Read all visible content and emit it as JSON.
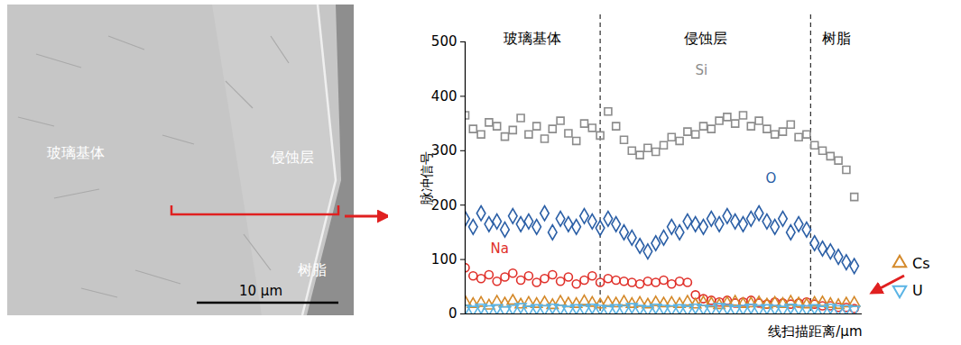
{
  "sem_image": {
    "labels": [
      "玻璃基体",
      "侵蚀层",
      "树脂"
    ],
    "scale_bar_label": "10 μm"
  },
  "chart_data": {
    "type": "scatter",
    "ylabel": "脉冲信号",
    "xlabel": "线扫描距离/μm",
    "xlim": [
      0,
      100
    ],
    "xticks": [],
    "ylim": [
      0,
      500
    ],
    "yticks": [
      0,
      100,
      200,
      300,
      400,
      500
    ],
    "tick_labels": "y",
    "legend": "right",
    "regions": [
      {
        "label": "玻璃基体",
        "start": 0,
        "end": 34
      },
      {
        "label": "侵蚀层",
        "start": 34,
        "end": 87
      },
      {
        "label": "树脂",
        "start": 87,
        "end": 100
      }
    ],
    "x": [
      0,
      2,
      4,
      6,
      8,
      10,
      12,
      14,
      16,
      18,
      20,
      22,
      24,
      26,
      28,
      30,
      32,
      34,
      36,
      38,
      40,
      42,
      44,
      46,
      48,
      50,
      52,
      54,
      56,
      58,
      60,
      62,
      64,
      66,
      68,
      70,
      72,
      74,
      76,
      78,
      80,
      82,
      84,
      86,
      88,
      90,
      92,
      94,
      96,
      98
    ],
    "series": [
      {
        "name": "Si",
        "color": "#8c8c8c",
        "marker": "square",
        "values": [
          365,
          340,
          330,
          352,
          345,
          326,
          338,
          360,
          330,
          345,
          322,
          340,
          355,
          332,
          318,
          350,
          342,
          328,
          372,
          345,
          320,
          300,
          292,
          305,
          298,
          310,
          325,
          318,
          335,
          330,
          345,
          340,
          355,
          362,
          350,
          365,
          345,
          355,
          340,
          330,
          335,
          348,
          325,
          330,
          310,
          300,
          290,
          282,
          265,
          215
        ]
      },
      {
        "name": "O",
        "color": "#2b5fa6",
        "marker": "diamond",
        "values": [
          175,
          160,
          185,
          165,
          170,
          155,
          180,
          165,
          170,
          160,
          185,
          150,
          175,
          165,
          160,
          180,
          170,
          158,
          175,
          165,
          150,
          140,
          125,
          115,
          130,
          140,
          160,
          150,
          170,
          165,
          160,
          175,
          165,
          180,
          170,
          165,
          175,
          185,
          170,
          160,
          175,
          150,
          165,
          155,
          130,
          120,
          115,
          105,
          95,
          88
        ]
      },
      {
        "name": "Na",
        "color": "#e0302a",
        "marker": "circle",
        "values": [
          85,
          70,
          65,
          72,
          60,
          68,
          75,
          62,
          70,
          58,
          65,
          72,
          60,
          68,
          55,
          62,
          70,
          58,
          65,
          62,
          60,
          58,
          55,
          60,
          58,
          62,
          55,
          60,
          58,
          35,
          28,
          25,
          22,
          25,
          20,
          22,
          25,
          20,
          18,
          22,
          20,
          18,
          20,
          22,
          18,
          15,
          15,
          12,
          12,
          10
        ]
      },
      {
        "name": "Cs",
        "color": "#d4892a",
        "marker": "triangle",
        "values": [
          22,
          18,
          20,
          15,
          22,
          19,
          24,
          17,
          20,
          18,
          21,
          16,
          22,
          19,
          18,
          23,
          20,
          17,
          21,
          19,
          22,
          18,
          20,
          17,
          21,
          19,
          20,
          18,
          22,
          17,
          21,
          19,
          16,
          20,
          22,
          18,
          19,
          21,
          17,
          20,
          18,
          22,
          19,
          17,
          20,
          21,
          18,
          16,
          19,
          20
        ]
      },
      {
        "name": "U",
        "color": "#5ab4e5",
        "marker": "triangle-down",
        "values": [
          10,
          8,
          12,
          9,
          11,
          7,
          10,
          13,
          8,
          11,
          9,
          12,
          10,
          8,
          11,
          9,
          12,
          10,
          8,
          11,
          9,
          13,
          10,
          8,
          12,
          10,
          9,
          11,
          8,
          12,
          10,
          9,
          13,
          11,
          8,
          10,
          12,
          9,
          11,
          10,
          8,
          12,
          10,
          9,
          11,
          8,
          12,
          9,
          10,
          8
        ]
      }
    ]
  }
}
